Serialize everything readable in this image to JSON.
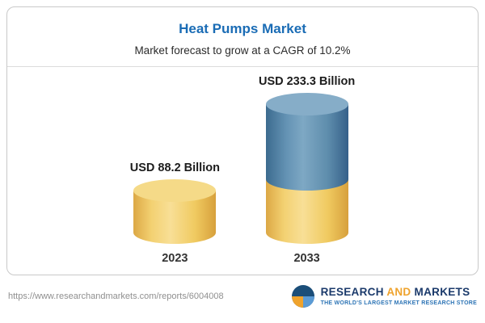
{
  "header": {
    "title": "Heat Pumps Market",
    "subtitle": "Market forecast to grow at a CAGR of 10.2%"
  },
  "chart_data": {
    "type": "bar",
    "title": "Heat Pumps Market",
    "subtitle": "Market forecast to grow at a CAGR of 10.2%",
    "categories": [
      "2023",
      "2033"
    ],
    "values": [
      88.2,
      233.3
    ],
    "value_labels": [
      "USD 88.2 Billion",
      "USD 233.3 Billion"
    ],
    "unit": "USD Billion",
    "cagr_percent": 10.2,
    "legend": false,
    "grid": false,
    "baseline_aligned": true,
    "bar_style": "3d-cylinder",
    "colors": {
      "bar_2023": "#f2cc63",
      "bar_2023_cap": "#f5da88",
      "bar_2033_top_segment": "#54809f",
      "bar_2033_top_cap": "#86adc8",
      "bar_2033_bottom_segment": "#f2cc63",
      "title_accent": "#1a6cb5"
    }
  },
  "footer": {
    "url": "https://www.researchandmarkets.com/reports/6004008",
    "logo": {
      "research": "RESEARCH",
      "and": "AND",
      "markets": "MARKETS",
      "tagline": "THE WORLD'S LARGEST MARKET RESEARCH STORE"
    }
  }
}
